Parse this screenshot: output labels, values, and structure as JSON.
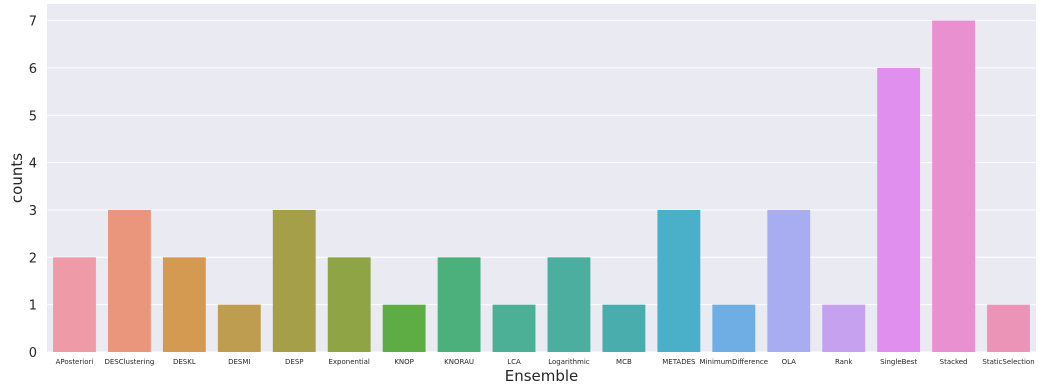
{
  "chart_data": {
    "type": "bar",
    "categories": [
      "APosteriori",
      "DESClustering",
      "DESKL",
      "DESMI",
      "DESP",
      "Exponential",
      "KNOP",
      "KNORAU",
      "LCA",
      "Logarithmic",
      "MCB",
      "METADES",
      "MinimumDifference",
      "OLA",
      "Rank",
      "SingleBest",
      "Stacked",
      "StaticSelection"
    ],
    "values": [
      2,
      3,
      2,
      1,
      3,
      2,
      1,
      2,
      1,
      2,
      1,
      3,
      1,
      3,
      1,
      6,
      7,
      1
    ],
    "colors": [
      "#ef9aa7",
      "#ea967c",
      "#d49a52",
      "#be9c50",
      "#a49f48",
      "#8fa444",
      "#5dac44",
      "#4bb07c",
      "#4bb095",
      "#4bae9f",
      "#49adad",
      "#4aafc8",
      "#6eaee5",
      "#a8acf0",
      "#c6a1ef",
      "#e08fee",
      "#e990d1",
      "#ec94b8"
    ],
    "title": "",
    "xlabel": "Ensemble",
    "ylabel": "counts",
    "ylim": [
      0,
      7.35
    ],
    "yticks": [
      0,
      1,
      2,
      3,
      4,
      5,
      6,
      7
    ],
    "grid": true,
    "background": "#eaeaf2"
  }
}
